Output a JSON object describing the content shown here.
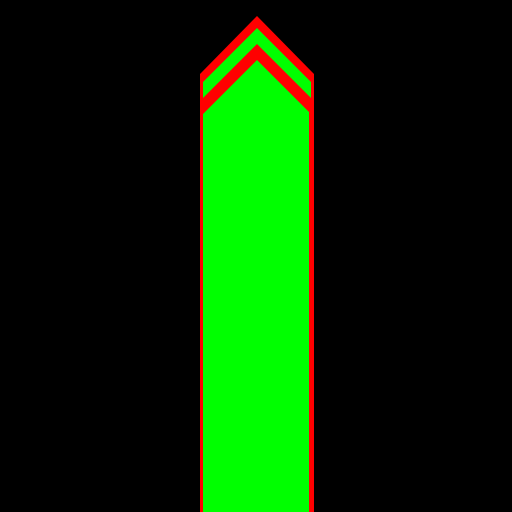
{
  "scene": {
    "background_color": "#000000",
    "arrow_fill_color": "#00ff00",
    "arrow_outline_color": "#ff0000",
    "inner_chevron_color": "#ff0000",
    "shape": "upward-arrow-with-double-chevron-tip"
  }
}
